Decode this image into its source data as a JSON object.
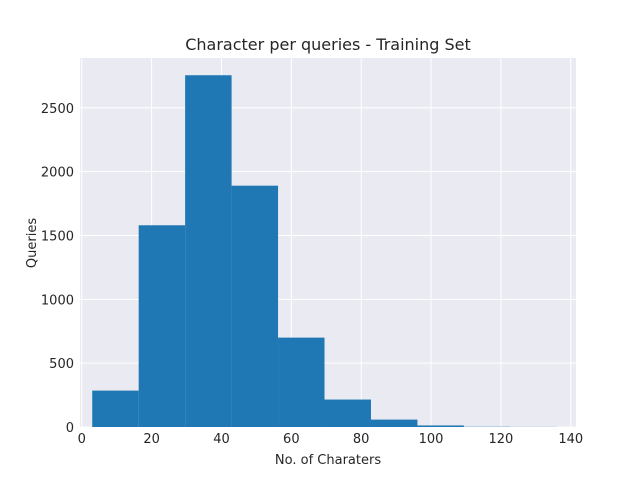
{
  "chart_data": {
    "type": "bar",
    "title": "Character per queries - Training Set",
    "xlabel": "No. of Charaters",
    "ylabel": "Queries",
    "xlim": [
      -0.5,
      141.5
    ],
    "ylim": [
      0,
      2890
    ],
    "grid": true,
    "background": "#eaeaf2",
    "bar_color": "#1f77b4",
    "x_ticks": [
      {
        "value": 0,
        "label": "0"
      },
      {
        "value": 20,
        "label": "20"
      },
      {
        "value": 40,
        "label": "40"
      },
      {
        "value": 60,
        "label": "60"
      },
      {
        "value": 80,
        "label": "80"
      },
      {
        "value": 100,
        "label": "100"
      },
      {
        "value": 120,
        "label": "120"
      },
      {
        "value": 140,
        "label": "140"
      }
    ],
    "y_ticks": [
      {
        "value": 0,
        "label": "0"
      },
      {
        "value": 500,
        "label": "500"
      },
      {
        "value": 1000,
        "label": "1000"
      },
      {
        "value": 1500,
        "label": "1500"
      },
      {
        "value": 2000,
        "label": "2000"
      },
      {
        "value": 2500,
        "label": "2500"
      }
    ],
    "bins": [
      {
        "x0": 3.0,
        "x1": 16.3,
        "value": 285
      },
      {
        "x0": 16.3,
        "x1": 29.6,
        "value": 1580
      },
      {
        "x0": 29.6,
        "x1": 42.9,
        "value": 2755
      },
      {
        "x0": 42.9,
        "x1": 56.2,
        "value": 1890
      },
      {
        "x0": 56.2,
        "x1": 69.5,
        "value": 700
      },
      {
        "x0": 69.5,
        "x1": 82.8,
        "value": 215
      },
      {
        "x0": 82.8,
        "x1": 96.1,
        "value": 58
      },
      {
        "x0": 96.1,
        "x1": 109.4,
        "value": 12
      },
      {
        "x0": 109.4,
        "x1": 122.7,
        "value": 2
      },
      {
        "x0": 122.7,
        "x1": 136.0,
        "value": 1
      }
    ]
  }
}
